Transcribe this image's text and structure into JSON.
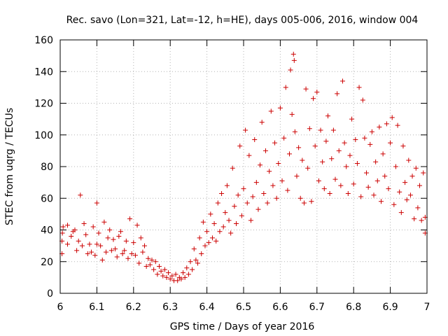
{
  "chart_data": {
    "type": "scatter",
    "title": "Rec. savo (Lon=321, Lat=-12, h=HE), days 005-006, 2016, window 004",
    "xlabel": "GPS time / Days of year 2016",
    "ylabel": "STEC from uqrg / TECUs",
    "xlim": [
      6.0,
      7.0
    ],
    "ylim": [
      0,
      160
    ],
    "xticks": [
      6.0,
      6.1,
      6.2,
      6.3,
      6.4,
      6.5,
      6.6,
      6.7,
      6.8,
      6.9,
      7.0
    ],
    "xtick_labels": [
      "6",
      "6.1",
      "6.2",
      "6.3",
      "6.4",
      "6.5",
      "6.6",
      "6.7",
      "6.8",
      "6.9",
      "7"
    ],
    "yticks": [
      0,
      20,
      40,
      60,
      80,
      100,
      120,
      140,
      160
    ],
    "ytick_labels": [
      "0",
      "20",
      "40",
      "60",
      "80",
      "100",
      "120",
      "140",
      "160"
    ],
    "grid": true,
    "marker": "+",
    "color": "#cc0000",
    "points": [
      [
        6.005,
        25
      ],
      [
        6.005,
        33
      ],
      [
        6.006,
        38
      ],
      [
        6.008,
        42
      ],
      [
        6.02,
        31
      ],
      [
        6.02,
        43
      ],
      [
        6.03,
        36
      ],
      [
        6.035,
        39
      ],
      [
        6.04,
        40
      ],
      [
        6.045,
        27
      ],
      [
        6.05,
        33
      ],
      [
        6.055,
        62
      ],
      [
        6.06,
        30
      ],
      [
        6.065,
        44
      ],
      [
        6.07,
        37
      ],
      [
        6.075,
        25
      ],
      [
        6.08,
        31
      ],
      [
        6.085,
        26
      ],
      [
        6.09,
        42
      ],
      [
        6.095,
        24
      ],
      [
        6.1,
        57
      ],
      [
        6.1,
        31
      ],
      [
        6.105,
        38
      ],
      [
        6.11,
        30
      ],
      [
        6.115,
        21
      ],
      [
        6.12,
        45
      ],
      [
        6.125,
        26
      ],
      [
        6.13,
        35
      ],
      [
        6.135,
        40
      ],
      [
        6.14,
        27
      ],
      [
        6.145,
        34
      ],
      [
        6.15,
        28
      ],
      [
        6.155,
        23
      ],
      [
        6.16,
        36
      ],
      [
        6.165,
        39
      ],
      [
        6.17,
        25
      ],
      [
        6.175,
        27
      ],
      [
        6.18,
        33
      ],
      [
        6.185,
        22
      ],
      [
        6.19,
        47
      ],
      [
        6.195,
        25
      ],
      [
        6.2,
        32
      ],
      [
        6.205,
        24
      ],
      [
        6.21,
        43
      ],
      [
        6.215,
        19
      ],
      [
        6.22,
        35
      ],
      [
        6.225,
        26
      ],
      [
        6.23,
        30
      ],
      [
        6.235,
        17
      ],
      [
        6.24,
        22
      ],
      [
        6.245,
        18
      ],
      [
        6.25,
        21
      ],
      [
        6.255,
        15
      ],
      [
        6.26,
        20
      ],
      [
        6.265,
        12
      ],
      [
        6.27,
        17
      ],
      [
        6.275,
        14
      ],
      [
        6.28,
        11
      ],
      [
        6.285,
        15
      ],
      [
        6.29,
        10
      ],
      [
        6.295,
        13
      ],
      [
        6.3,
        9
      ],
      [
        6.305,
        11
      ],
      [
        6.31,
        8
      ],
      [
        6.315,
        12
      ],
      [
        6.32,
        8
      ],
      [
        6.325,
        10
      ],
      [
        6.33,
        9
      ],
      [
        6.335,
        13
      ],
      [
        6.34,
        10
      ],
      [
        6.345,
        16
      ],
      [
        6.35,
        12
      ],
      [
        6.355,
        20
      ],
      [
        6.36,
        15
      ],
      [
        6.365,
        28
      ],
      [
        6.37,
        21
      ],
      [
        6.375,
        19
      ],
      [
        6.38,
        35
      ],
      [
        6.385,
        25
      ],
      [
        6.39,
        45
      ],
      [
        6.395,
        30
      ],
      [
        6.4,
        39
      ],
      [
        6.405,
        32
      ],
      [
        6.41,
        50
      ],
      [
        6.415,
        35
      ],
      [
        6.42,
        44
      ],
      [
        6.425,
        33
      ],
      [
        6.43,
        57
      ],
      [
        6.435,
        39
      ],
      [
        6.44,
        63
      ],
      [
        6.445,
        42
      ],
      [
        6.45,
        51
      ],
      [
        6.455,
        68
      ],
      [
        6.46,
        46
      ],
      [
        6.465,
        38
      ],
      [
        6.47,
        79
      ],
      [
        6.475,
        55
      ],
      [
        6.48,
        44
      ],
      [
        6.485,
        62
      ],
      [
        6.49,
        93
      ],
      [
        6.495,
        49
      ],
      [
        6.5,
        66
      ],
      [
        6.505,
        103
      ],
      [
        6.51,
        57
      ],
      [
        6.515,
        87
      ],
      [
        6.52,
        46
      ],
      [
        6.525,
        61
      ],
      [
        6.53,
        97
      ],
      [
        6.535,
        70
      ],
      [
        6.54,
        53
      ],
      [
        6.545,
        81
      ],
      [
        6.55,
        108
      ],
      [
        6.555,
        63
      ],
      [
        6.56,
        90
      ],
      [
        6.565,
        57
      ],
      [
        6.57,
        77
      ],
      [
        6.575,
        115
      ],
      [
        6.58,
        68
      ],
      [
        6.585,
        95
      ],
      [
        6.59,
        60
      ],
      [
        6.595,
        82
      ],
      [
        6.6,
        117
      ],
      [
        6.605,
        71
      ],
      [
        6.61,
        98
      ],
      [
        6.615,
        130
      ],
      [
        6.62,
        65
      ],
      [
        6.625,
        88
      ],
      [
        6.628,
        141
      ],
      [
        6.632,
        113
      ],
      [
        6.636,
        151
      ],
      [
        6.638,
        147
      ],
      [
        6.64,
        102
      ],
      [
        6.645,
        74
      ],
      [
        6.65,
        92
      ],
      [
        6.655,
        60
      ],
      [
        6.66,
        84
      ],
      [
        6.665,
        57
      ],
      [
        6.67,
        129
      ],
      [
        6.675,
        79
      ],
      [
        6.68,
        104
      ],
      [
        6.685,
        58
      ],
      [
        6.69,
        123
      ],
      [
        6.695,
        93
      ],
      [
        6.7,
        127
      ],
      [
        6.705,
        71
      ],
      [
        6.71,
        103
      ],
      [
        6.715,
        83
      ],
      [
        6.72,
        66
      ],
      [
        6.725,
        96
      ],
      [
        6.73,
        112
      ],
      [
        6.735,
        63
      ],
      [
        6.74,
        85
      ],
      [
        6.745,
        103
      ],
      [
        6.75,
        72
      ],
      [
        6.755,
        126
      ],
      [
        6.76,
        90
      ],
      [
        6.765,
        68
      ],
      [
        6.77,
        134
      ],
      [
        6.775,
        95
      ],
      [
        6.78,
        80
      ],
      [
        6.785,
        63
      ],
      [
        6.79,
        87
      ],
      [
        6.795,
        110
      ],
      [
        6.8,
        69
      ],
      [
        6.805,
        97
      ],
      [
        6.81,
        82
      ],
      [
        6.815,
        130
      ],
      [
        6.82,
        61
      ],
      [
        6.825,
        122
      ],
      [
        6.83,
        98
      ],
      [
        6.835,
        76
      ],
      [
        6.84,
        67
      ],
      [
        6.845,
        94
      ],
      [
        6.85,
        102
      ],
      [
        6.855,
        62
      ],
      [
        6.86,
        83
      ],
      [
        6.865,
        71
      ],
      [
        6.87,
        105
      ],
      [
        6.875,
        58
      ],
      [
        6.88,
        88
      ],
      [
        6.885,
        74
      ],
      [
        6.89,
        107
      ],
      [
        6.895,
        66
      ],
      [
        6.9,
        95
      ],
      [
        6.905,
        111
      ],
      [
        6.91,
        56
      ],
      [
        6.915,
        80
      ],
      [
        6.92,
        106
      ],
      [
        6.925,
        64
      ],
      [
        6.93,
        51
      ],
      [
        6.935,
        93
      ],
      [
        6.94,
        70
      ],
      [
        6.945,
        59
      ],
      [
        6.95,
        84
      ],
      [
        6.955,
        62
      ],
      [
        6.96,
        74
      ],
      [
        6.965,
        47
      ],
      [
        6.97,
        79
      ],
      [
        6.975,
        54
      ],
      [
        6.98,
        68
      ],
      [
        6.985,
        46
      ],
      [
        6.99,
        76
      ],
      [
        6.995,
        48
      ],
      [
        6.995,
        38
      ]
    ]
  }
}
